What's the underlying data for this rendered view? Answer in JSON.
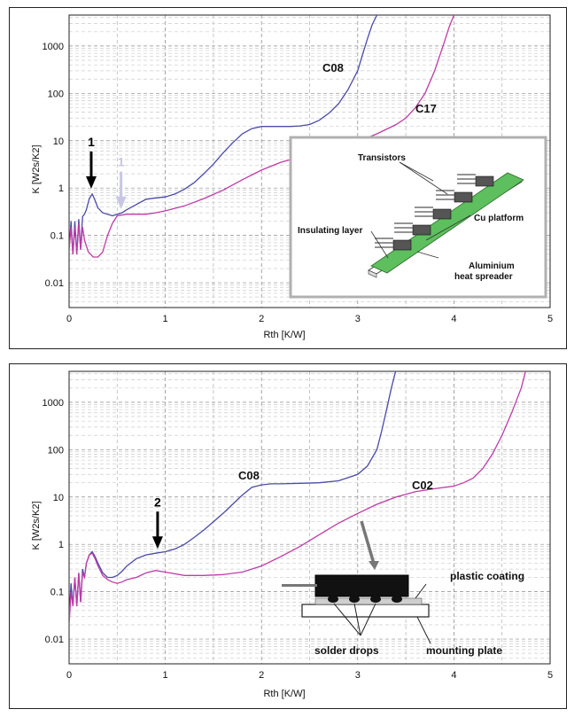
{
  "chart_data": [
    {
      "type": "line",
      "xlabel": "Rth  [K/W]",
      "ylabel": "K  [W2s/K2]",
      "xlim": [
        0,
        5
      ],
      "ylim": [
        0.003,
        4500
      ],
      "yscale": "log",
      "x_ticks": [
        "0",
        "1",
        "2",
        "3",
        "4",
        "5"
      ],
      "y_ticks": [
        "0.01",
        "0.1",
        "1",
        "10",
        "100",
        "1000"
      ],
      "series": [
        {
          "name": "C08",
          "color": "#4a4aa8",
          "x": [
            0.0,
            0.02,
            0.04,
            0.06,
            0.08,
            0.1,
            0.12,
            0.14,
            0.16,
            0.18,
            0.21,
            0.24,
            0.27,
            0.3,
            0.35,
            0.4,
            0.45,
            0.5,
            0.55,
            0.6,
            0.7,
            0.8,
            0.9,
            1.0,
            1.1,
            1.2,
            1.3,
            1.4,
            1.5,
            1.6,
            1.7,
            1.8,
            1.9,
            2.0,
            2.1,
            2.2,
            2.3,
            2.4,
            2.5,
            2.6,
            2.7,
            2.8,
            2.9,
            3.0,
            3.05,
            3.1,
            3.15,
            3.2,
            3.24
          ],
          "y": [
            0.05,
            0.2,
            0.04,
            0.2,
            0.04,
            0.22,
            0.05,
            0.25,
            0.28,
            0.35,
            0.6,
            0.75,
            0.55,
            0.38,
            0.3,
            0.28,
            0.26,
            0.28,
            0.3,
            0.35,
            0.45,
            0.58,
            0.62,
            0.65,
            0.75,
            0.95,
            1.3,
            2.0,
            3.2,
            5.5,
            9.0,
            14,
            18,
            20,
            20,
            20,
            20,
            20.5,
            22,
            27,
            38,
            60,
            120,
            300,
            650,
            1400,
            2800,
            4500,
            6000
          ]
        },
        {
          "name": "C17",
          "color": "#c03aa8",
          "x": [
            0.0,
            0.02,
            0.04,
            0.06,
            0.08,
            0.1,
            0.12,
            0.14,
            0.16,
            0.18,
            0.2,
            0.25,
            0.3,
            0.35,
            0.4,
            0.45,
            0.5,
            0.6,
            0.7,
            0.8,
            0.9,
            1.0,
            1.2,
            1.4,
            1.6,
            1.8,
            2.0,
            2.2,
            2.4,
            2.6,
            2.8,
            3.0,
            3.2,
            3.4,
            3.5,
            3.6,
            3.7,
            3.8,
            3.9,
            3.95,
            4.0,
            4.03
          ],
          "y": [
            0.05,
            0.15,
            0.04,
            0.15,
            0.04,
            0.18,
            0.05,
            0.15,
            0.08,
            0.06,
            0.045,
            0.035,
            0.035,
            0.045,
            0.1,
            0.18,
            0.26,
            0.28,
            0.28,
            0.28,
            0.3,
            0.33,
            0.42,
            0.6,
            0.9,
            1.5,
            2.4,
            3.5,
            4.5,
            5.5,
            7.0,
            9.5,
            14,
            22,
            30,
            50,
            100,
            300,
            1200,
            2500,
            4500,
            6000
          ]
        }
      ],
      "annotations": [
        {
          "text": "1",
          "at_x": 0.23,
          "at_y": 0.75,
          "color": "#000000"
        },
        {
          "text": "1",
          "at_x": 0.54,
          "at_y": 0.28,
          "color": "#c8c6e4"
        }
      ],
      "inset_labels": [
        "Transistors",
        "Cu platform",
        "Insulating layer",
        "Aluminium",
        "heat spreader"
      ]
    },
    {
      "type": "line",
      "xlabel": "Rth  [K/W]",
      "ylabel": "K  [W2s/K2]",
      "xlim": [
        0,
        5
      ],
      "ylim": [
        0.003,
        4500
      ],
      "yscale": "log",
      "x_ticks": [
        "0",
        "1",
        "2",
        "3",
        "4",
        "5"
      ],
      "y_ticks": [
        "0.01",
        "0.1",
        "1",
        "10",
        "100",
        "1000"
      ],
      "series": [
        {
          "name": "C08",
          "color": "#4a4aa8",
          "x": [
            0.0,
            0.02,
            0.04,
            0.06,
            0.08,
            0.1,
            0.12,
            0.14,
            0.16,
            0.18,
            0.21,
            0.24,
            0.27,
            0.3,
            0.35,
            0.4,
            0.45,
            0.5,
            0.55,
            0.6,
            0.7,
            0.8,
            0.9,
            1.0,
            1.1,
            1.2,
            1.3,
            1.4,
            1.5,
            1.6,
            1.7,
            1.8,
            1.9,
            2.0,
            2.1,
            2.2,
            2.4,
            2.6,
            2.8,
            3.0,
            3.1,
            3.2,
            3.25,
            3.3,
            3.35,
            3.38,
            3.4
          ],
          "y": [
            0.03,
            0.15,
            0.05,
            0.2,
            0.05,
            0.25,
            0.06,
            0.3,
            0.2,
            0.4,
            0.6,
            0.7,
            0.55,
            0.4,
            0.25,
            0.2,
            0.2,
            0.22,
            0.27,
            0.35,
            0.5,
            0.6,
            0.65,
            0.7,
            0.8,
            1.0,
            1.4,
            2.0,
            3.0,
            4.5,
            7.0,
            11,
            16,
            18,
            19,
            19,
            19.5,
            20,
            22,
            30,
            45,
            100,
            250,
            700,
            2000,
            3500,
            5000
          ]
        },
        {
          "name": "C02",
          "color": "#c03aa8",
          "x": [
            0.0,
            0.02,
            0.04,
            0.06,
            0.08,
            0.1,
            0.12,
            0.14,
            0.16,
            0.18,
            0.21,
            0.24,
            0.27,
            0.3,
            0.35,
            0.4,
            0.45,
            0.5,
            0.55,
            0.6,
            0.7,
            0.8,
            0.9,
            1.0,
            1.2,
            1.4,
            1.6,
            1.8,
            2.0,
            2.2,
            2.4,
            2.6,
            2.8,
            3.0,
            3.2,
            3.4,
            3.6,
            3.8,
            4.0,
            4.1,
            4.2,
            4.3,
            4.4,
            4.5,
            4.6,
            4.7,
            4.75
          ],
          "y": [
            0.02,
            0.1,
            0.05,
            0.2,
            0.05,
            0.25,
            0.06,
            0.25,
            0.2,
            0.4,
            0.6,
            0.65,
            0.5,
            0.35,
            0.22,
            0.18,
            0.16,
            0.15,
            0.16,
            0.18,
            0.2,
            0.25,
            0.28,
            0.26,
            0.22,
            0.22,
            0.23,
            0.26,
            0.35,
            0.55,
            0.9,
            1.6,
            2.8,
            4.5,
            7.0,
            10,
            13,
            15,
            17,
            20,
            25,
            40,
            80,
            200,
            600,
            2000,
            5000
          ]
        }
      ],
      "annotations": [
        {
          "text": "2",
          "at_x": 0.92,
          "at_y": 0.62,
          "color": "#000000"
        }
      ],
      "inset_labels": [
        "plastic coating",
        "solder drops",
        "mounting plate"
      ]
    }
  ]
}
